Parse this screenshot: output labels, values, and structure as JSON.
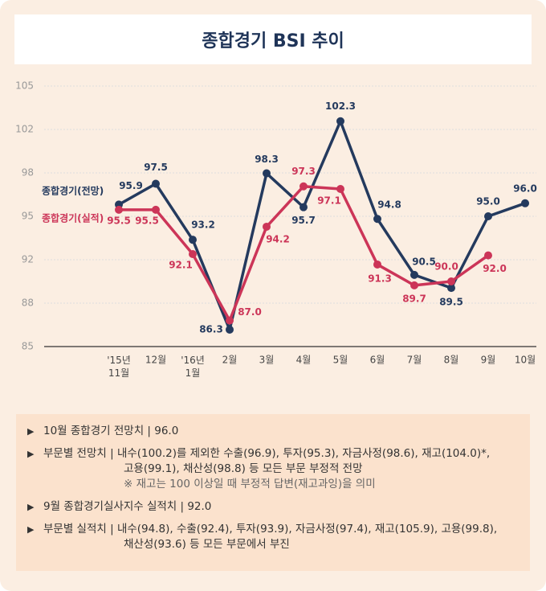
{
  "chart_data": {
    "type": "line",
    "title": "종합경기 BSI 추이",
    "categories": [
      "'15년\n11월",
      "12월",
      "'16년\n1월",
      "2월",
      "3월",
      "4월",
      "5월",
      "6월",
      "7월",
      "8월",
      "9월",
      "10월"
    ],
    "series": [
      {
        "name": "종합경기(전망)",
        "color": "#243a5e",
        "values": [
          95.9,
          97.5,
          93.2,
          86.3,
          98.3,
          95.7,
          102.3,
          94.8,
          90.5,
          89.5,
          95.0,
          96.0
        ],
        "value_labels": [
          "95.9",
          "97.5",
          "93.2",
          "86.3",
          "98.3",
          "95.7",
          "102.3",
          "94.8",
          "90.5",
          "89.5",
          "95.0",
          "96.0"
        ]
      },
      {
        "name": "종합경기(실적)",
        "color": "#cc3558",
        "values": [
          95.5,
          95.5,
          92.1,
          87.0,
          94.2,
          97.3,
          97.1,
          91.3,
          89.7,
          90.0,
          92.0,
          null
        ],
        "value_labels": [
          "95.5",
          "95.5",
          "92.1",
          "87.0",
          "94.2",
          "97.3",
          "97.1",
          "91.3",
          "89.7",
          "90.0",
          "92.0",
          null
        ]
      }
    ],
    "ylim": [
      85,
      105
    ],
    "yticks": [
      85,
      {
        "value": 88.33,
        "label": "88"
      },
      {
        "value": 91.67,
        "label": "92"
      },
      95,
      {
        "value": 98.33,
        "label": "98"
      },
      {
        "value": 101.67,
        "label": "102"
      },
      105
    ],
    "grid": true
  },
  "notes": [
    {
      "lines": [
        "10월 종합경기 전망치 | 96.0"
      ]
    },
    {
      "lines": [
        "부문별 전망치 | 내수(100.2)를 제외한 수출(96.9), 투자(95.3), 자금사정(98.6), 재고(104.0)*,",
        "고용(99.1), 채산성(98.8) 등 모든 부문 부정적 전망",
        "※ 재고는 100 이상일 때 부정적 답변(재고과잉)을 의미"
      ]
    },
    {
      "lines": [
        "9월 종합경기실사지수 실적치 | 92.0"
      ]
    },
    {
      "lines": [
        "부문별 실적치 | 내수(94.8), 수출(92.4), 투자(93.9), 자금사정(97.4), 재고(105.9), 고용(99.8),",
        "채산성(93.6) 등 모든 부문에서 부진"
      ]
    }
  ]
}
